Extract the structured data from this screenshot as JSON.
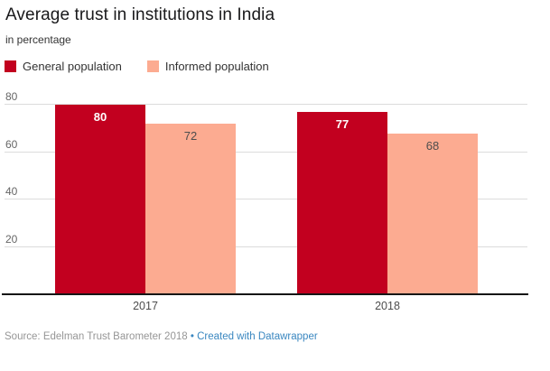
{
  "header": {
    "title": "Average trust in institutions in India",
    "subtitle": "in percentage"
  },
  "legend": [
    {
      "label": "General population",
      "color": "#c2001f"
    },
    {
      "label": "Informed population",
      "color": "#fcab91"
    }
  ],
  "chart_data": {
    "type": "bar",
    "title": "Average trust in institutions in India",
    "subtitle": "in percentage",
    "categories": [
      "2017",
      "2018"
    ],
    "series": [
      {
        "name": "General population",
        "values": [
          80,
          77
        ],
        "color": "#c2001f",
        "value_label_color": "#ffffff",
        "value_label_bold": true
      },
      {
        "name": "Informed population",
        "values": [
          72,
          68
        ],
        "color": "#fcab91",
        "value_label_color": "#4d4d4d",
        "value_label_bold": false
      }
    ],
    "xlabel": "",
    "ylabel": "in percentage",
    "ylim": [
      0,
      84
    ],
    "yticks": [
      20,
      40,
      60,
      80
    ],
    "grid": true,
    "legend_position": "top-left",
    "value_labels": true
  },
  "footer": {
    "source_text": "Source: Edelman Trust Barometer 2018",
    "separator": "•",
    "link_text": "Created with Datawrapper"
  },
  "colors": {
    "series1": "#c2001f",
    "series2": "#fcab91",
    "gridline": "#dcdcdc",
    "baseline": "#161616",
    "title": "#19191b",
    "tick_label": "#666666",
    "x_label": "#4d4d4d",
    "source": "#969696",
    "link": "#3a87c0"
  }
}
